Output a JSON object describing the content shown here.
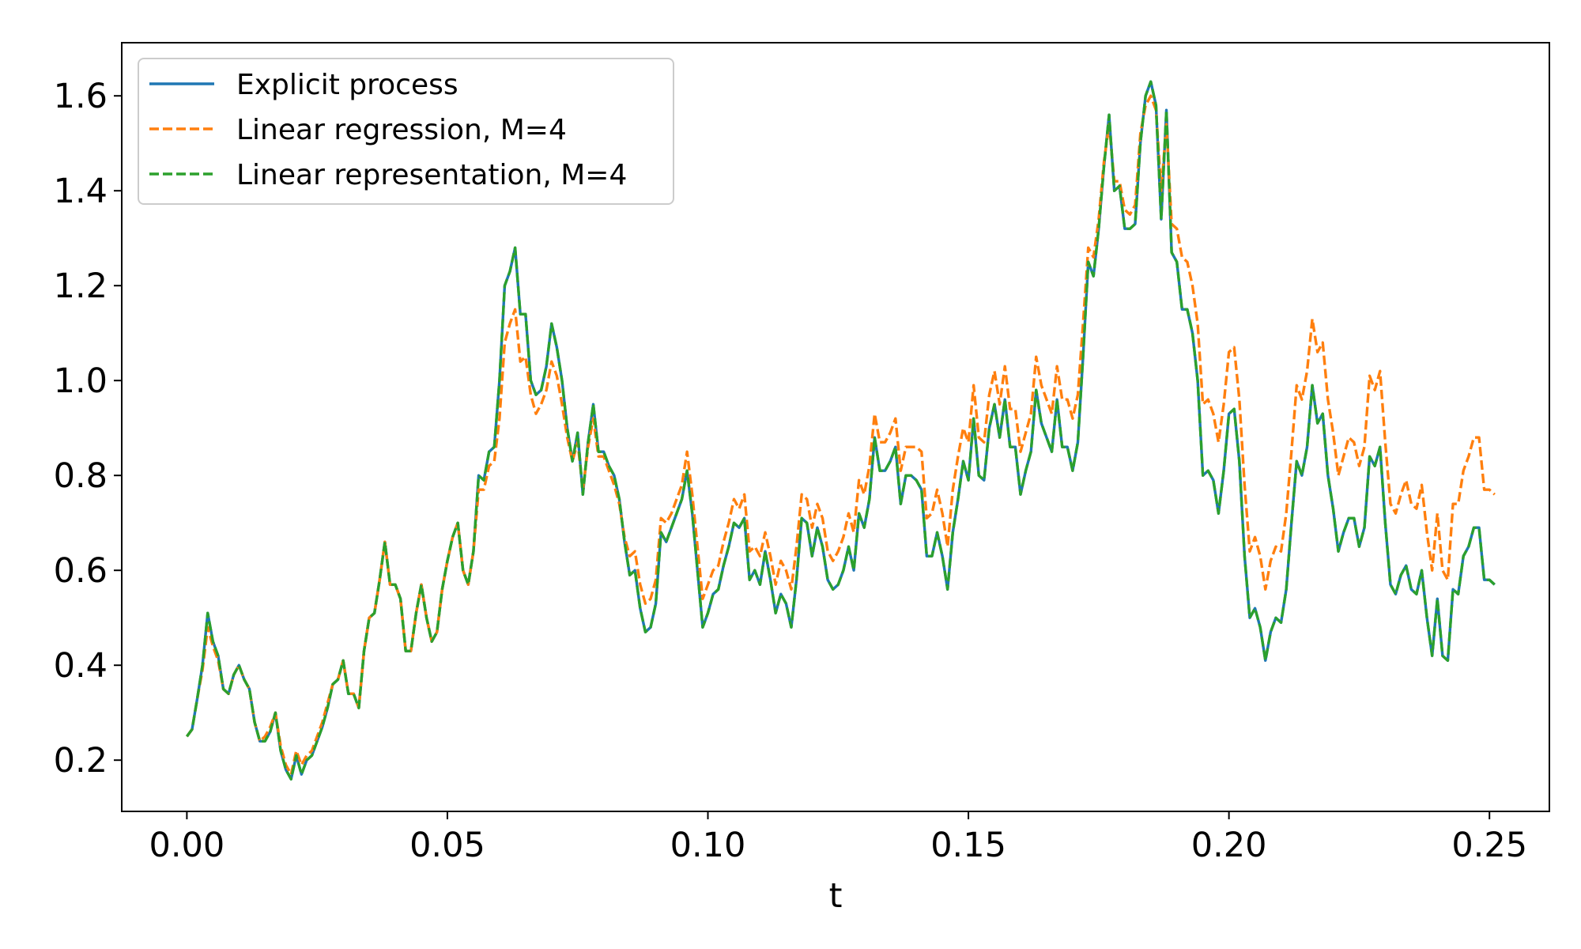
{
  "chart_data": {
    "type": "line",
    "title": "",
    "xlabel": "t",
    "ylabel": "",
    "xlim": [
      -0.0125,
      0.2615
    ],
    "ylim": [
      0.092,
      1.712
    ],
    "x_ticks": [
      0.0,
      0.05,
      0.1,
      0.15,
      0.2,
      0.25
    ],
    "x_tick_labels": [
      "0.00",
      "0.05",
      "0.10",
      "0.15",
      "0.20",
      "0.25"
    ],
    "y_ticks": [
      0.2,
      0.4,
      0.6,
      0.8,
      1.0,
      1.2,
      1.4,
      1.6
    ],
    "y_tick_labels": [
      "0.2",
      "0.4",
      "0.6",
      "0.8",
      "1.0",
      "1.2",
      "1.4",
      "1.6"
    ],
    "grid": false,
    "legend_position": "top-left",
    "x_start": 0.0,
    "x_step": 0.001,
    "series": [
      {
        "name": "Explicit process",
        "color": "#1f77b4",
        "style": "solid",
        "values": [
          0.25,
          0.265,
          0.33,
          0.4,
          0.51,
          0.45,
          0.42,
          0.35,
          0.34,
          0.38,
          0.4,
          0.37,
          0.35,
          0.28,
          0.24,
          0.24,
          0.26,
          0.3,
          0.22,
          0.18,
          0.16,
          0.21,
          0.17,
          0.2,
          0.21,
          0.24,
          0.27,
          0.31,
          0.36,
          0.37,
          0.41,
          0.34,
          0.34,
          0.31,
          0.43,
          0.5,
          0.51,
          0.58,
          0.66,
          0.57,
          0.57,
          0.54,
          0.43,
          0.43,
          0.51,
          0.57,
          0.5,
          0.45,
          0.47,
          0.56,
          0.62,
          0.67,
          0.7,
          0.6,
          0.57,
          0.64,
          0.8,
          0.79,
          0.85,
          0.86,
          1.0,
          1.2,
          1.23,
          1.28,
          1.14,
          1.14,
          1.0,
          0.97,
          0.98,
          1.03,
          1.12,
          1.07,
          1.0,
          0.9,
          0.83,
          0.89,
          0.76,
          0.87,
          0.95,
          0.85,
          0.85,
          0.82,
          0.8,
          0.75,
          0.66,
          0.59,
          0.6,
          0.52,
          0.47,
          0.48,
          0.53,
          0.68,
          0.66,
          0.69,
          0.72,
          0.75,
          0.81,
          0.72,
          0.6,
          0.48,
          0.51,
          0.55,
          0.56,
          0.61,
          0.65,
          0.7,
          0.69,
          0.71,
          0.58,
          0.6,
          0.57,
          0.64,
          0.58,
          0.51,
          0.55,
          0.53,
          0.48,
          0.58,
          0.71,
          0.7,
          0.63,
          0.69,
          0.65,
          0.58,
          0.56,
          0.57,
          0.6,
          0.65,
          0.6,
          0.72,
          0.69,
          0.75,
          0.88,
          0.81,
          0.81,
          0.83,
          0.86,
          0.74,
          0.8,
          0.8,
          0.79,
          0.77,
          0.63,
          0.63,
          0.68,
          0.63,
          0.56,
          0.68,
          0.75,
          0.83,
          0.79,
          0.92,
          0.8,
          0.79,
          0.9,
          0.95,
          0.88,
          0.96,
          0.86,
          0.86,
          0.76,
          0.81,
          0.85,
          0.98,
          0.91,
          0.88,
          0.85,
          0.96,
          0.86,
          0.86,
          0.81,
          0.87,
          1.05,
          1.25,
          1.22,
          1.32,
          1.45,
          1.56,
          1.4,
          1.41,
          1.32,
          1.32,
          1.33,
          1.5,
          1.6,
          1.63,
          1.58,
          1.34,
          1.57,
          1.27,
          1.25,
          1.15,
          1.15,
          1.1,
          1.0,
          0.8,
          0.81,
          0.79,
          0.72,
          0.81,
          0.93,
          0.94,
          0.83,
          0.63,
          0.5,
          0.52,
          0.48,
          0.41,
          0.47,
          0.5,
          0.49,
          0.56,
          0.7,
          0.83,
          0.8,
          0.86,
          0.99,
          0.91,
          0.93,
          0.8,
          0.73,
          0.64,
          0.68,
          0.71,
          0.71,
          0.65,
          0.69,
          0.84,
          0.82,
          0.86,
          0.7,
          0.57,
          0.55,
          0.59,
          0.61,
          0.56,
          0.55,
          0.6,
          0.5,
          0.42,
          0.54,
          0.42,
          0.41,
          0.56,
          0.55,
          0.63,
          0.65,
          0.69,
          0.69,
          0.58,
          0.58,
          0.57
        ]
      },
      {
        "name": "Linear regression, M=4",
        "color": "#ff7f0e",
        "style": "dashed",
        "values": [
          0.25,
          0.265,
          0.33,
          0.39,
          0.48,
          0.44,
          0.41,
          0.35,
          0.34,
          0.38,
          0.4,
          0.37,
          0.35,
          0.28,
          0.24,
          0.25,
          0.27,
          0.3,
          0.23,
          0.19,
          0.17,
          0.22,
          0.19,
          0.21,
          0.22,
          0.25,
          0.28,
          0.32,
          0.36,
          0.37,
          0.41,
          0.34,
          0.34,
          0.31,
          0.43,
          0.5,
          0.51,
          0.58,
          0.66,
          0.57,
          0.57,
          0.54,
          0.43,
          0.43,
          0.51,
          0.57,
          0.5,
          0.45,
          0.47,
          0.56,
          0.62,
          0.67,
          0.7,
          0.6,
          0.57,
          0.64,
          0.77,
          0.77,
          0.82,
          0.83,
          0.92,
          1.08,
          1.12,
          1.15,
          1.04,
          1.05,
          0.97,
          0.93,
          0.95,
          0.98,
          1.04,
          1.01,
          0.95,
          0.88,
          0.83,
          0.87,
          0.77,
          0.86,
          0.92,
          0.84,
          0.84,
          0.81,
          0.78,
          0.74,
          0.67,
          0.63,
          0.64,
          0.57,
          0.53,
          0.54,
          0.58,
          0.71,
          0.7,
          0.72,
          0.75,
          0.78,
          0.85,
          0.76,
          0.65,
          0.54,
          0.57,
          0.6,
          0.61,
          0.66,
          0.7,
          0.75,
          0.73,
          0.76,
          0.64,
          0.65,
          0.63,
          0.68,
          0.63,
          0.57,
          0.62,
          0.6,
          0.56,
          0.65,
          0.76,
          0.75,
          0.69,
          0.74,
          0.71,
          0.64,
          0.62,
          0.64,
          0.67,
          0.72,
          0.68,
          0.79,
          0.76,
          0.82,
          0.93,
          0.87,
          0.87,
          0.89,
          0.92,
          0.81,
          0.86,
          0.86,
          0.86,
          0.85,
          0.71,
          0.72,
          0.77,
          0.72,
          0.65,
          0.77,
          0.84,
          0.9,
          0.87,
          0.99,
          0.88,
          0.87,
          0.97,
          1.02,
          0.95,
          1.03,
          0.94,
          0.94,
          0.85,
          0.89,
          0.93,
          1.05,
          0.99,
          0.96,
          0.93,
          1.03,
          0.96,
          0.96,
          0.92,
          0.97,
          1.12,
          1.28,
          1.26,
          1.34,
          1.46,
          1.54,
          1.42,
          1.42,
          1.36,
          1.35,
          1.37,
          1.52,
          1.58,
          1.6,
          1.57,
          1.4,
          1.54,
          1.33,
          1.32,
          1.26,
          1.25,
          1.2,
          1.12,
          0.95,
          0.96,
          0.93,
          0.87,
          0.95,
          1.06,
          1.07,
          0.96,
          0.78,
          0.64,
          0.67,
          0.63,
          0.56,
          0.62,
          0.65,
          0.64,
          0.72,
          0.85,
          0.99,
          0.96,
          1.02,
          1.13,
          1.06,
          1.08,
          0.96,
          0.89,
          0.8,
          0.84,
          0.88,
          0.87,
          0.82,
          0.86,
          1.01,
          0.98,
          1.02,
          0.87,
          0.74,
          0.72,
          0.76,
          0.79,
          0.74,
          0.73,
          0.78,
          0.68,
          0.6,
          0.72,
          0.6,
          0.58,
          0.74,
          0.74,
          0.81,
          0.84,
          0.88,
          0.88,
          0.77,
          0.77,
          0.76
        ]
      },
      {
        "name": "Linear representation, M=4",
        "color": "#2ca02c",
        "style": "dashed",
        "values": [
          0.25,
          0.265,
          0.33,
          0.4,
          0.51,
          0.45,
          0.42,
          0.35,
          0.34,
          0.38,
          0.4,
          0.37,
          0.35,
          0.28,
          0.24,
          0.24,
          0.26,
          0.3,
          0.22,
          0.18,
          0.16,
          0.21,
          0.17,
          0.2,
          0.21,
          0.24,
          0.27,
          0.31,
          0.36,
          0.37,
          0.41,
          0.34,
          0.34,
          0.31,
          0.43,
          0.5,
          0.51,
          0.58,
          0.66,
          0.57,
          0.57,
          0.54,
          0.43,
          0.43,
          0.51,
          0.57,
          0.5,
          0.45,
          0.47,
          0.56,
          0.62,
          0.67,
          0.7,
          0.6,
          0.57,
          0.64,
          0.8,
          0.79,
          0.85,
          0.86,
          1.0,
          1.2,
          1.23,
          1.28,
          1.14,
          1.14,
          1.0,
          0.97,
          0.98,
          1.03,
          1.12,
          1.07,
          1.0,
          0.9,
          0.83,
          0.89,
          0.76,
          0.87,
          0.95,
          0.85,
          0.85,
          0.82,
          0.8,
          0.75,
          0.66,
          0.59,
          0.6,
          0.52,
          0.47,
          0.48,
          0.53,
          0.68,
          0.66,
          0.69,
          0.72,
          0.75,
          0.81,
          0.72,
          0.6,
          0.48,
          0.51,
          0.55,
          0.56,
          0.61,
          0.65,
          0.7,
          0.69,
          0.71,
          0.58,
          0.6,
          0.57,
          0.64,
          0.58,
          0.51,
          0.55,
          0.53,
          0.48,
          0.58,
          0.71,
          0.7,
          0.63,
          0.69,
          0.65,
          0.58,
          0.56,
          0.57,
          0.6,
          0.65,
          0.6,
          0.72,
          0.69,
          0.75,
          0.88,
          0.81,
          0.81,
          0.83,
          0.86,
          0.74,
          0.8,
          0.8,
          0.79,
          0.77,
          0.63,
          0.63,
          0.68,
          0.63,
          0.56,
          0.68,
          0.75,
          0.83,
          0.79,
          0.92,
          0.8,
          0.79,
          0.9,
          0.95,
          0.88,
          0.96,
          0.86,
          0.86,
          0.76,
          0.81,
          0.85,
          0.98,
          0.91,
          0.88,
          0.85,
          0.96,
          0.86,
          0.86,
          0.81,
          0.87,
          1.05,
          1.25,
          1.22,
          1.32,
          1.45,
          1.56,
          1.4,
          1.41,
          1.32,
          1.32,
          1.33,
          1.5,
          1.6,
          1.63,
          1.58,
          1.34,
          1.57,
          1.27,
          1.25,
          1.15,
          1.15,
          1.1,
          1.0,
          0.8,
          0.81,
          0.79,
          0.72,
          0.81,
          0.93,
          0.94,
          0.83,
          0.63,
          0.5,
          0.52,
          0.48,
          0.41,
          0.47,
          0.5,
          0.49,
          0.56,
          0.7,
          0.83,
          0.8,
          0.86,
          0.99,
          0.91,
          0.93,
          0.8,
          0.73,
          0.64,
          0.68,
          0.71,
          0.71,
          0.65,
          0.69,
          0.84,
          0.82,
          0.86,
          0.7,
          0.57,
          0.55,
          0.59,
          0.61,
          0.56,
          0.55,
          0.6,
          0.5,
          0.42,
          0.54,
          0.42,
          0.41,
          0.56,
          0.55,
          0.63,
          0.65,
          0.69,
          0.69,
          0.58,
          0.58,
          0.57
        ]
      }
    ]
  }
}
